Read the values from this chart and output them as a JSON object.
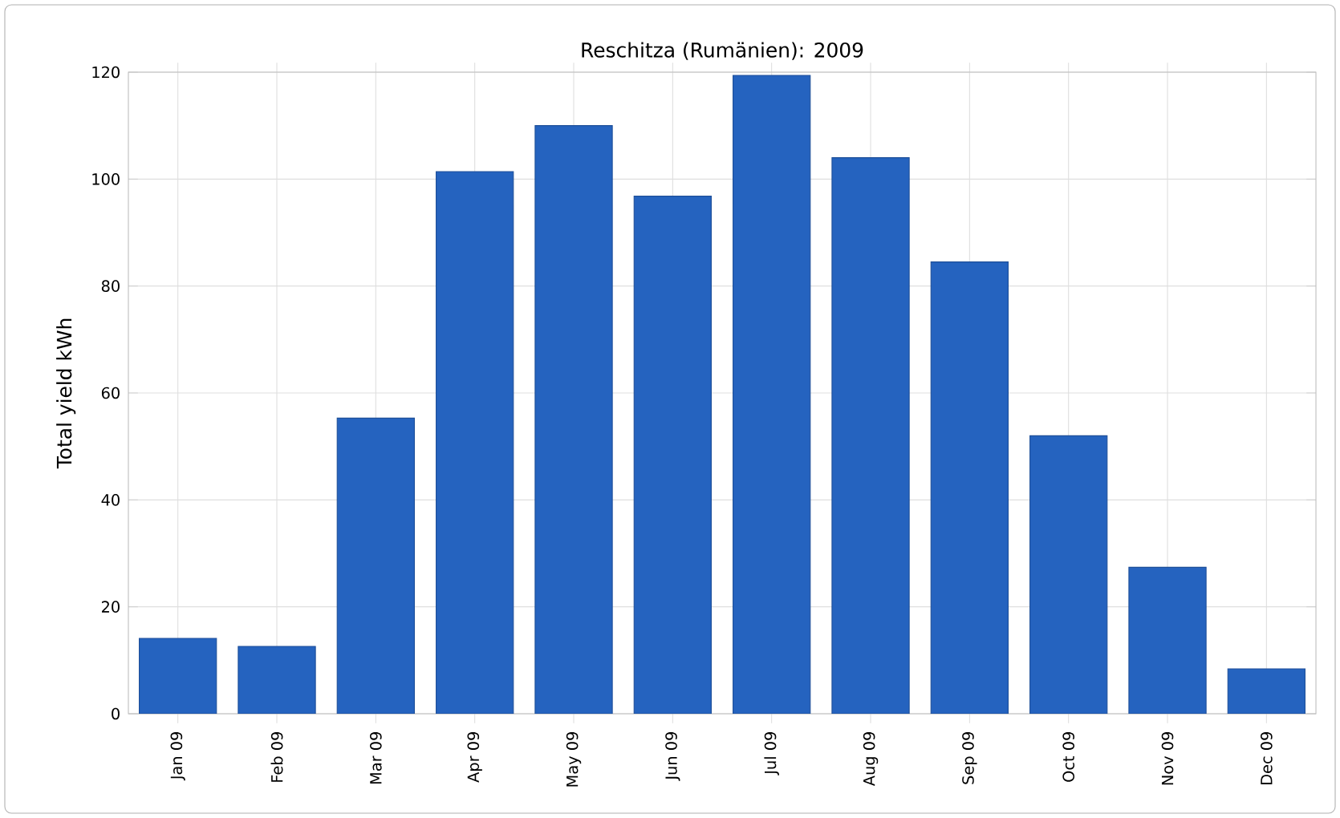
{
  "chart_data": {
    "type": "bar",
    "title": "Reschitza (Rumänien): 2009",
    "ylabel": "Total yield kWh",
    "categories": [
      "Jan 09",
      "Feb 09",
      "Mar 09",
      "Apr 09",
      "May 09",
      "Jun 09",
      "Jul 09",
      "Aug 09",
      "Sep 09",
      "Oct 09",
      "Nov 09",
      "Dec 09"
    ],
    "values": [
      14.1,
      12.6,
      55.3,
      101.4,
      110,
      96.8,
      119.4,
      104,
      84.5,
      52,
      27.4,
      8.4
    ],
    "color": "#2563bf",
    "ylim": [
      0,
      120
    ],
    "yticks": [
      0,
      20,
      40,
      60,
      80,
      100,
      120
    ],
    "grid": true
  }
}
